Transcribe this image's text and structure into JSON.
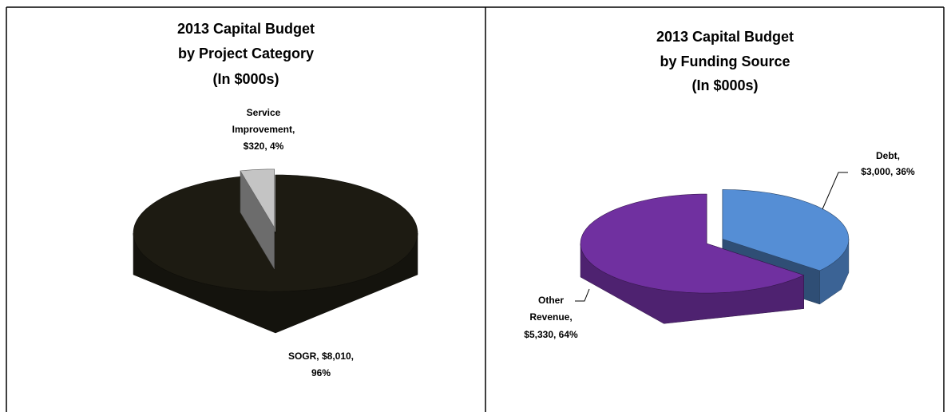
{
  "chart_data": [
    {
      "type": "pie",
      "title": [
        "2013 Capital Budget",
        "by Project Category",
        "(In $000s)"
      ],
      "categories": [
        "SOGR",
        "Service Improvement"
      ],
      "values": [
        8010,
        320
      ],
      "percents": [
        96,
        4
      ],
      "value_labels": [
        [
          "SOGR, $8,010,",
          "96%"
        ],
        [
          "Service",
          "Improvement,",
          "$320, 4%"
        ]
      ],
      "colors": [
        "#1d1b12",
        "#c4c4c4"
      ]
    },
    {
      "type": "pie",
      "title": [
        "2013 Capital Budget",
        "by Funding Source",
        "(In $000s)"
      ],
      "categories": [
        "Debt",
        "Other Revenue"
      ],
      "values": [
        3000,
        5330
      ],
      "percents": [
        36,
        64
      ],
      "value_labels": [
        [
          "Debt,",
          "$3,000, 36%"
        ],
        [
          "Other",
          "Revenue,",
          "$5,330, 64%"
        ]
      ],
      "colors": [
        "#558ed5",
        "#7030a0"
      ]
    }
  ]
}
